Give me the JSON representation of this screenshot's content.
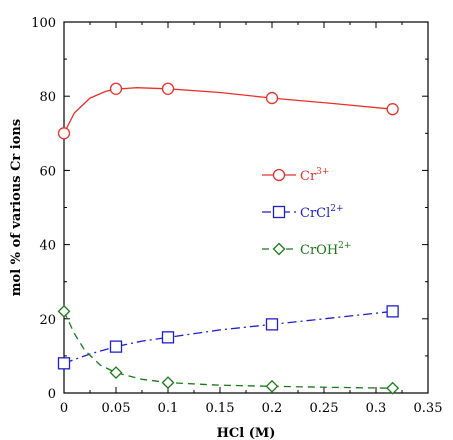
{
  "chart_data": {
    "type": "line",
    "xlabel": "HCl (M)",
    "ylabel": "mol % of various Cr ions",
    "xlim": [
      0,
      0.35
    ],
    "ylim": [
      0,
      100
    ],
    "xticks": [
      0,
      0.05,
      0.1,
      0.15,
      0.2,
      0.25,
      0.3,
      0.35
    ],
    "xtick_labels": [
      "0",
      "0.05",
      "0.1",
      "0.15",
      "0.2",
      "0.25",
      "0.3",
      "0.35"
    ],
    "yticks": [
      0,
      20,
      40,
      60,
      80,
      100
    ],
    "ytick_labels": [
      "0",
      "20",
      "40",
      "60",
      "80",
      "100"
    ],
    "legend_position": "center-right",
    "series": [
      {
        "name": "Cr",
        "superscript": "3+",
        "marker": "circle",
        "line_style": "solid",
        "color": "#e8312a",
        "x": [
          0,
          0.05,
          0.1,
          0.2,
          0.316
        ],
        "values": [
          70,
          82,
          82,
          79.5,
          76.5
        ],
        "curve": [
          [
            0,
            70
          ],
          [
            0.01,
            75.5
          ],
          [
            0.025,
            79.5
          ],
          [
            0.04,
            81.3
          ],
          [
            0.05,
            81.9
          ],
          [
            0.07,
            82.3
          ],
          [
            0.1,
            82
          ],
          [
            0.15,
            81
          ],
          [
            0.2,
            79.5
          ],
          [
            0.26,
            78
          ],
          [
            0.316,
            76.5
          ]
        ]
      },
      {
        "name": "CrCl",
        "superscript": "2+",
        "marker": "square",
        "line_style": "dash-dot",
        "color": "#1f1fd0",
        "x": [
          0,
          0.05,
          0.1,
          0.2,
          0.316
        ],
        "values": [
          8,
          12.5,
          15,
          18.5,
          22
        ],
        "curve": [
          [
            0,
            8
          ],
          [
            0.025,
            10.5
          ],
          [
            0.05,
            12.5
          ],
          [
            0.075,
            14
          ],
          [
            0.1,
            15
          ],
          [
            0.15,
            17
          ],
          [
            0.2,
            18.5
          ],
          [
            0.26,
            20.3
          ],
          [
            0.316,
            22
          ]
        ]
      },
      {
        "name": "CrOH",
        "superscript": "2+",
        "marker": "diamond",
        "line_style": "dashed",
        "color": "#1a7a1a",
        "x": [
          0,
          0.05,
          0.1,
          0.2,
          0.316
        ],
        "values": [
          22,
          5.5,
          2.8,
          1.8,
          1.3
        ],
        "curve": [
          [
            0,
            22
          ],
          [
            0.01,
            16
          ],
          [
            0.02,
            11.5
          ],
          [
            0.035,
            7.5
          ],
          [
            0.05,
            5.5
          ],
          [
            0.075,
            3.7
          ],
          [
            0.1,
            2.8
          ],
          [
            0.15,
            2.1
          ],
          [
            0.2,
            1.8
          ],
          [
            0.26,
            1.5
          ],
          [
            0.316,
            1.3
          ]
        ]
      }
    ]
  }
}
